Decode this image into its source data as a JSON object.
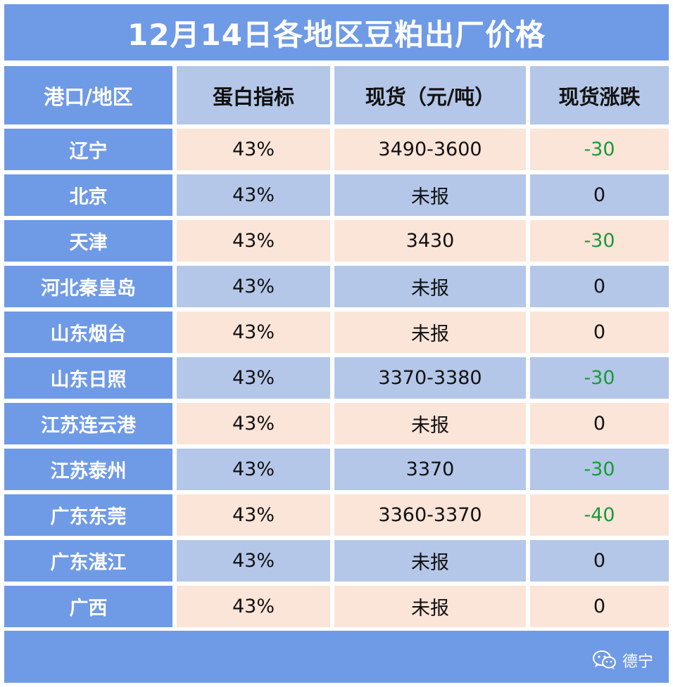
{
  "title": "12月14日各地区豆粕出厂价格",
  "headers": [
    "港口/地区",
    "蛋白指标",
    "现货（元/吨）",
    "现货涨跌"
  ],
  "rows": [
    {
      "region": "辽宁",
      "protein": "43%",
      "price": "3490-3600",
      "change": "-30"
    },
    {
      "region": "北京",
      "protein": "43%",
      "price": "未报",
      "change": "0"
    },
    {
      "region": "天津",
      "protein": "43%",
      "price": "3430",
      "change": "-30"
    },
    {
      "region": "河北秦皇岛",
      "protein": "43%",
      "price": "未报",
      "change": "0"
    },
    {
      "region": "山东烟台",
      "protein": "43%",
      "price": "未报",
      "change": "0"
    },
    {
      "region": "山东日照",
      "protein": "43%",
      "price": "3370-3380",
      "change": "-30"
    },
    {
      "region": "江苏连云港",
      "protein": "43%",
      "price": "未报",
      "change": "0"
    },
    {
      "region": "江苏泰州",
      "protein": "43%",
      "price": "3370",
      "change": "-30"
    },
    {
      "region": "广东东莞",
      "protein": "43%",
      "price": "3360-3370",
      "change": "-40"
    },
    {
      "region": "广东湛江",
      "protein": "43%",
      "price": "未报",
      "change": "0"
    },
    {
      "region": "广西",
      "protein": "43%",
      "price": "未报",
      "change": "0"
    }
  ],
  "footer": {
    "brand_name": "德宁",
    "brand_icon": "wechat-icon"
  },
  "colors": {
    "header_blue": "#6f9ae6",
    "light_blue": "#b4c7e8",
    "peach": "#fbe4d8",
    "negative_green": "#1a9a3a"
  }
}
